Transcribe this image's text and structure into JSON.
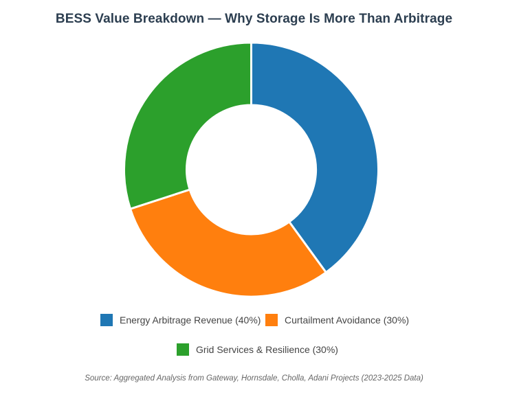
{
  "chart_data": {
    "type": "pie",
    "variant": "donut",
    "title": "BESS Value Breakdown — Why Storage Is More Than Arbitrage",
    "slices": [
      {
        "label": "Energy Arbitrage Revenue (40%)",
        "value": 40,
        "color": "#1f77b4"
      },
      {
        "label": "Curtailment Avoidance (30%)",
        "value": 30,
        "color": "#ff7f0e"
      },
      {
        "label": "Grid Services & Resilience (30%)",
        "value": 30,
        "color": "#2ca02c"
      }
    ],
    "legend_position": "bottom",
    "source": "Source: Aggregated Analysis from Gateway, Hornsdale, Cholla, Adani Projects (2023-2025 Data)"
  }
}
